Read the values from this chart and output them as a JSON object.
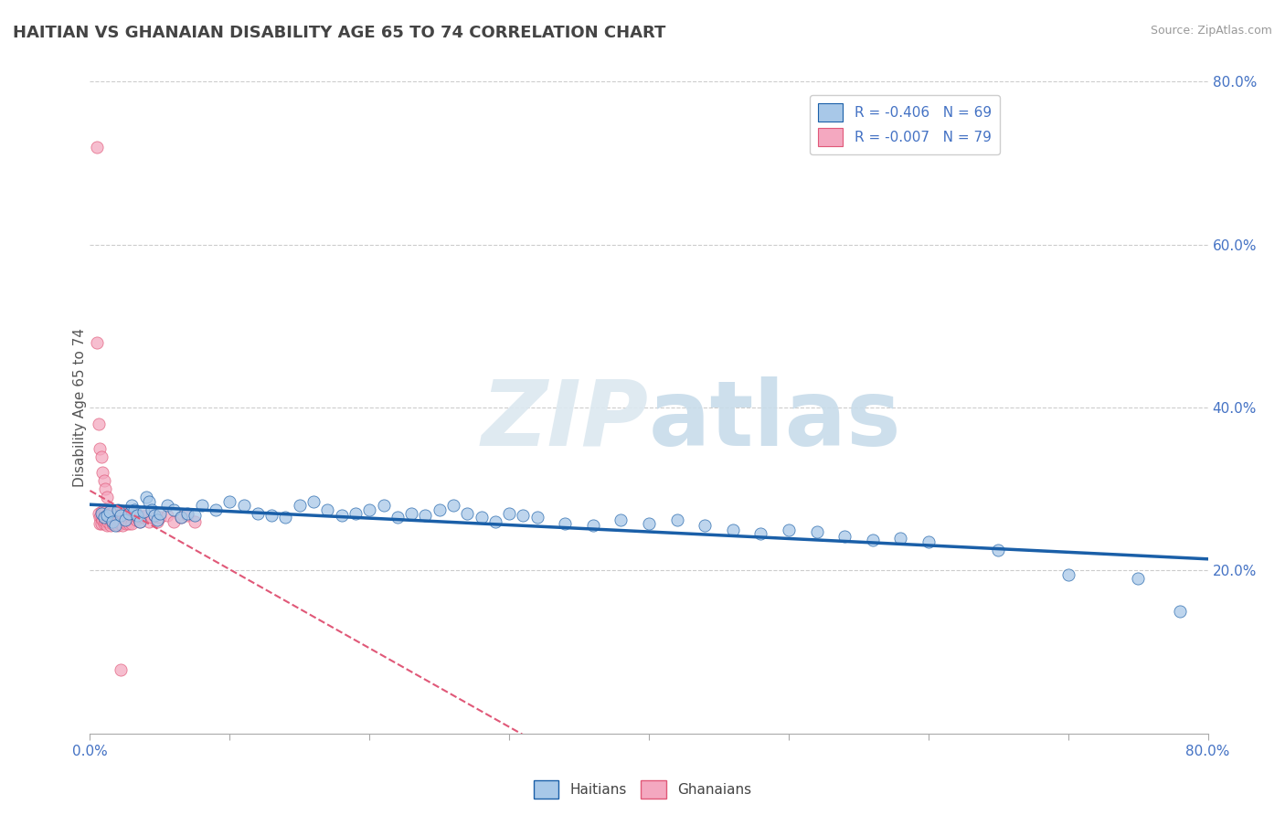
{
  "title": "HAITIAN VS GHANAIAN DISABILITY AGE 65 TO 74 CORRELATION CHART",
  "source": "Source: ZipAtlas.com",
  "ylabel": "Disability Age 65 to 74",
  "xmin": 0.0,
  "xmax": 0.8,
  "ymin": 0.0,
  "ymax": 0.8,
  "haitians_color": "#a8c8e8",
  "ghanaians_color": "#f4a8c0",
  "haitians_line_color": "#1a5fa8",
  "ghanaians_line_color": "#e05878",
  "legend_label_1": "R = -0.406   N = 69",
  "legend_label_2": "R = -0.007   N = 79",
  "bottom_legend_1": "Haitians",
  "bottom_legend_2": "Ghanaians",
  "watermark_zip": "ZIP",
  "watermark_atlas": "atlas",
  "title_color": "#444444",
  "axis_label_color": "#4472c4",
  "haitian_x": [
    0.008,
    0.01,
    0.012,
    0.014,
    0.016,
    0.018,
    0.02,
    0.022,
    0.025,
    0.028,
    0.03,
    0.032,
    0.034,
    0.036,
    0.038,
    0.04,
    0.042,
    0.044,
    0.046,
    0.048,
    0.05,
    0.055,
    0.06,
    0.065,
    0.07,
    0.075,
    0.08,
    0.09,
    0.1,
    0.11,
    0.12,
    0.13,
    0.14,
    0.15,
    0.16,
    0.17,
    0.18,
    0.19,
    0.2,
    0.21,
    0.22,
    0.23,
    0.24,
    0.25,
    0.26,
    0.27,
    0.28,
    0.29,
    0.3,
    0.31,
    0.32,
    0.34,
    0.36,
    0.38,
    0.4,
    0.42,
    0.44,
    0.46,
    0.48,
    0.5,
    0.52,
    0.54,
    0.56,
    0.58,
    0.6,
    0.65,
    0.7,
    0.75,
    0.78
  ],
  "haitian_y": [
    0.27,
    0.265,
    0.268,
    0.272,
    0.26,
    0.255,
    0.275,
    0.268,
    0.262,
    0.27,
    0.28,
    0.275,
    0.268,
    0.26,
    0.272,
    0.29,
    0.285,
    0.275,
    0.268,
    0.262,
    0.27,
    0.28,
    0.275,
    0.265,
    0.27,
    0.268,
    0.28,
    0.275,
    0.285,
    0.28,
    0.27,
    0.268,
    0.265,
    0.28,
    0.285,
    0.275,
    0.268,
    0.27,
    0.275,
    0.28,
    0.265,
    0.27,
    0.268,
    0.275,
    0.28,
    0.27,
    0.265,
    0.26,
    0.27,
    0.268,
    0.265,
    0.258,
    0.255,
    0.262,
    0.258,
    0.262,
    0.255,
    0.25,
    0.245,
    0.25,
    0.248,
    0.242,
    0.238,
    0.24,
    0.235,
    0.225,
    0.195,
    0.19,
    0.15
  ],
  "ghanaian_x": [
    0.005,
    0.006,
    0.007,
    0.007,
    0.008,
    0.008,
    0.008,
    0.009,
    0.009,
    0.01,
    0.01,
    0.01,
    0.011,
    0.011,
    0.012,
    0.012,
    0.012,
    0.013,
    0.013,
    0.014,
    0.014,
    0.015,
    0.015,
    0.015,
    0.016,
    0.016,
    0.017,
    0.017,
    0.018,
    0.018,
    0.019,
    0.019,
    0.02,
    0.02,
    0.02,
    0.021,
    0.021,
    0.022,
    0.022,
    0.023,
    0.023,
    0.024,
    0.025,
    0.025,
    0.026,
    0.026,
    0.027,
    0.028,
    0.028,
    0.029,
    0.03,
    0.03,
    0.031,
    0.032,
    0.033,
    0.034,
    0.035,
    0.036,
    0.038,
    0.04,
    0.042,
    0.044,
    0.046,
    0.048,
    0.05,
    0.055,
    0.06,
    0.065,
    0.07,
    0.075,
    0.005,
    0.006,
    0.007,
    0.008,
    0.009,
    0.01,
    0.011,
    0.012,
    0.022
  ],
  "ghanaian_y": [
    0.72,
    0.27,
    0.265,
    0.258,
    0.272,
    0.265,
    0.258,
    0.27,
    0.262,
    0.275,
    0.265,
    0.258,
    0.272,
    0.26,
    0.268,
    0.26,
    0.255,
    0.268,
    0.26,
    0.272,
    0.264,
    0.27,
    0.262,
    0.255,
    0.268,
    0.258,
    0.272,
    0.26,
    0.265,
    0.258,
    0.268,
    0.26,
    0.272,
    0.26,
    0.255,
    0.268,
    0.258,
    0.27,
    0.26,
    0.265,
    0.255,
    0.268,
    0.272,
    0.26,
    0.27,
    0.258,
    0.265,
    0.27,
    0.258,
    0.265,
    0.268,
    0.258,
    0.265,
    0.268,
    0.262,
    0.265,
    0.268,
    0.26,
    0.265,
    0.268,
    0.26,
    0.265,
    0.268,
    0.26,
    0.265,
    0.268,
    0.26,
    0.265,
    0.268,
    0.26,
    0.48,
    0.38,
    0.35,
    0.34,
    0.32,
    0.31,
    0.3,
    0.29,
    0.078
  ]
}
